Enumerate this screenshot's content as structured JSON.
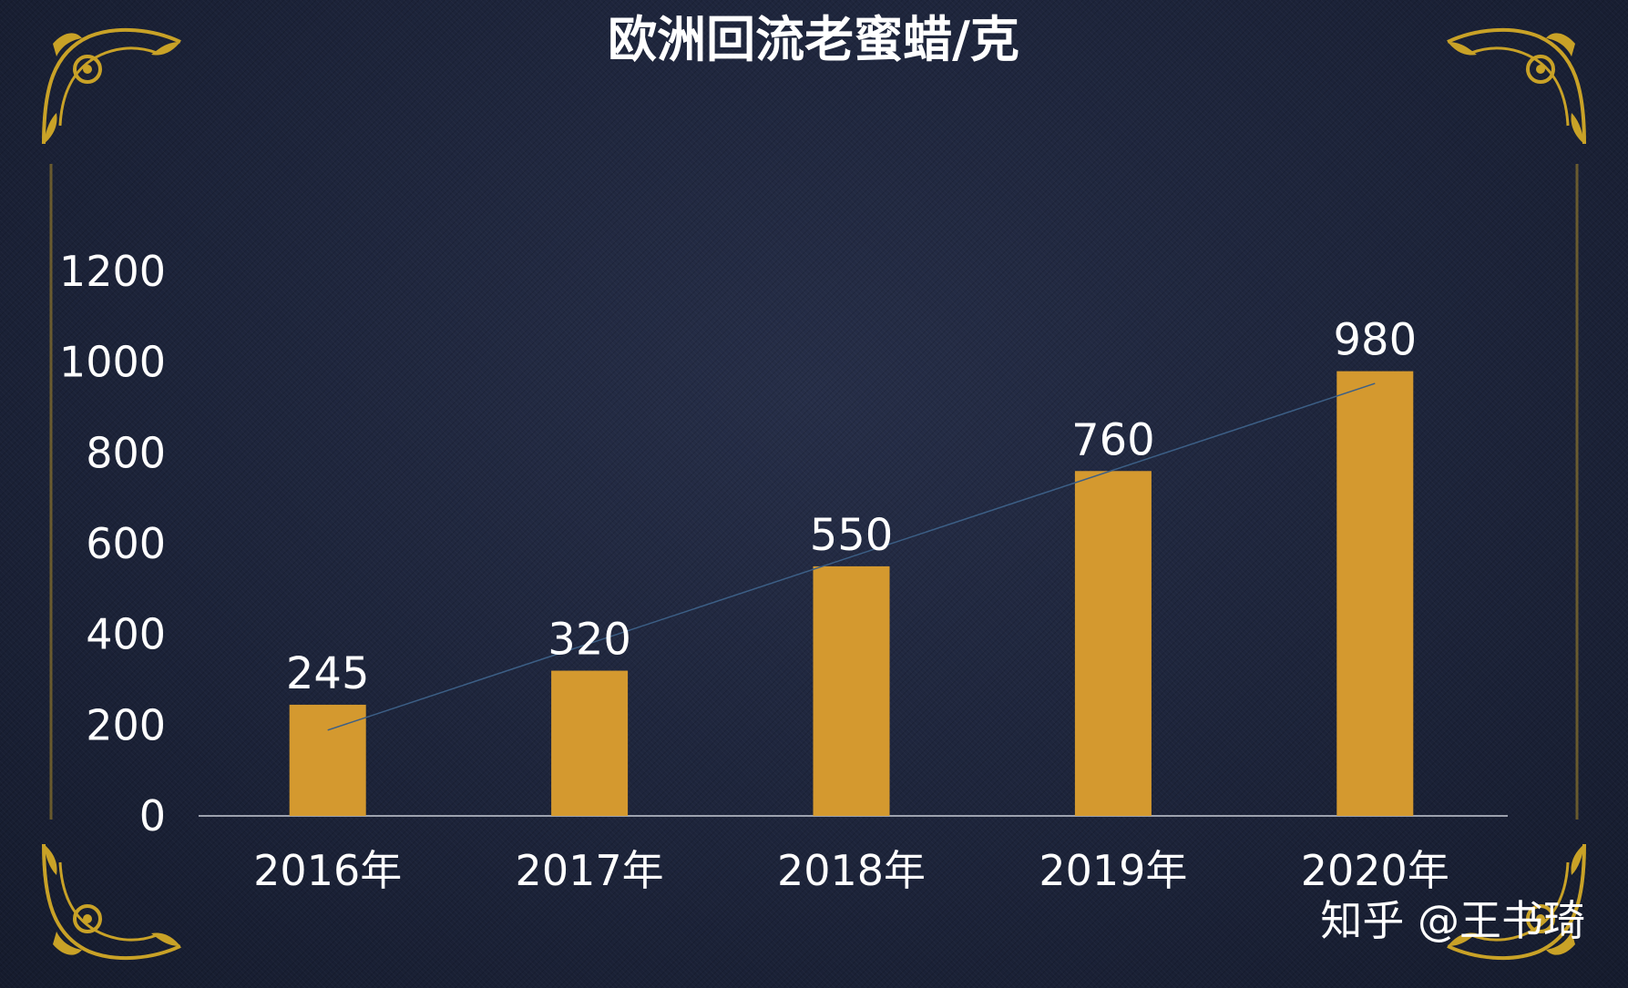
{
  "watermark": "知乎 @王书琦",
  "colors": {
    "bar": "#d4992f",
    "ornament": "#c9a227",
    "trendline": "#3c5f86",
    "axis": "#c8ccd6"
  },
  "chart_data": {
    "type": "bar",
    "title": "欧洲回流老蜜蜡/克",
    "categories": [
      "2016年",
      "2017年",
      "2018年",
      "2019年",
      "2020年"
    ],
    "values": [
      245,
      320,
      550,
      760,
      980
    ],
    "ylim": [
      0,
      1200
    ],
    "yticks": [
      0,
      200,
      400,
      600,
      800,
      1000,
      1200
    ],
    "xlabel": "",
    "ylabel": "",
    "grid": false,
    "legend": "none",
    "data_labels": true,
    "trendline": "linear"
  }
}
